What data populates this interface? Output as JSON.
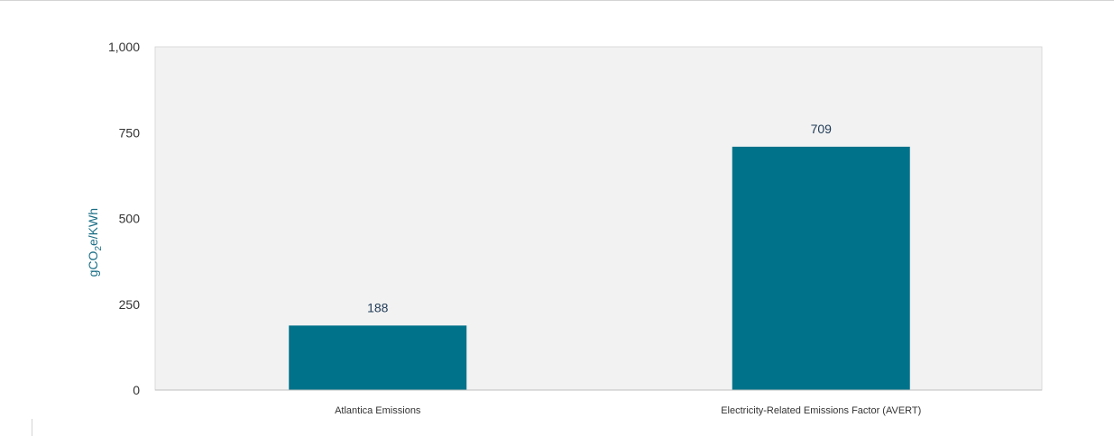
{
  "chart_data": {
    "type": "bar",
    "categories": [
      "Atlantica Emissions",
      "Electricity-Related Emissions Factor (AVERT)"
    ],
    "values": [
      188,
      709
    ],
    "data_labels": [
      "188",
      "709"
    ],
    "ylabel": {
      "main": "gCO",
      "sub": "2",
      "suffix": "e/KWh"
    },
    "ylim": [
      0,
      1000
    ],
    "yticks": [
      0,
      250,
      500,
      750,
      1000
    ],
    "ytick_labels": [
      "0",
      "250",
      "500",
      "750",
      "1,000"
    ],
    "grid": false,
    "bar_color": "#00728a",
    "plot_background": "#f2f2f2"
  }
}
